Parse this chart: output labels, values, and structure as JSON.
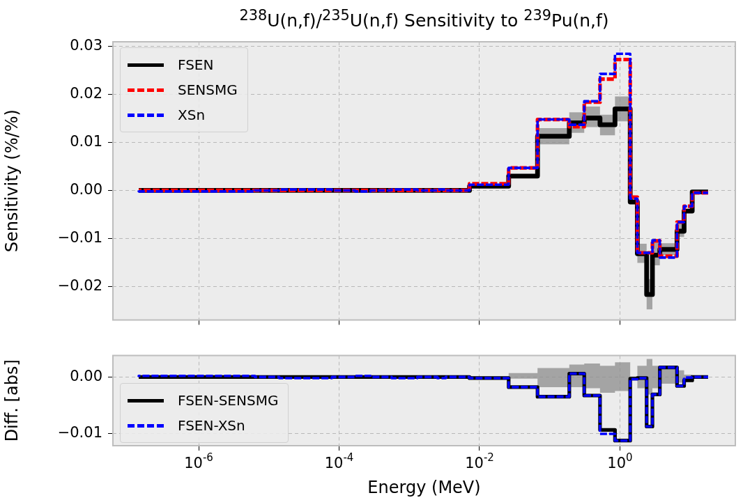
{
  "chart_data": [
    {
      "type": "step",
      "title": "$^{238}$U(n,f)/$^{235}$U(n,f) Sensitivity to $^{239}$Pu(n,f)",
      "ylabel": "Sensitivity (%/%)",
      "x": [
        1.4e-07,
        6.3e-06,
        1.4e-05,
        7.9e-05,
        0.00017,
        0.00028,
        0.00056,
        0.0013,
        0.0025,
        0.0033,
        0.0072,
        0.026,
        0.067,
        0.19,
        0.31,
        0.52,
        0.85,
        1.4,
        1.77,
        2.4,
        2.9,
        3.7,
        6.5,
        8.2,
        10.7,
        12.9,
        18
      ],
      "series": [
        {
          "name": "FSEN",
          "color": "#000000",
          "line_style": "solid",
          "values": [
            0,
            0,
            0,
            0,
            0,
            0,
            0,
            0,
            0,
            0,
            0,
            0.0009,
            0.003,
            0.0113,
            0.0141,
            0.0151,
            0.0137,
            0.017,
            -0.0024,
            -0.0132,
            -0.0217,
            -0.0135,
            -0.0123,
            -0.0085,
            -0.0043,
            -0.0003,
            -0.0003
          ],
          "lower": [
            0,
            0,
            0,
            0,
            0,
            0,
            0,
            0,
            0,
            0,
            0,
            0.0007,
            0.0028,
            0.0096,
            0.012,
            0.0132,
            0.0115,
            0.0144,
            -0.0027,
            -0.0151,
            -0.0248,
            -0.0156,
            -0.0135,
            -0.0097,
            -0.0046,
            -0.0004,
            -0.0004
          ],
          "upper": [
            0,
            0,
            0,
            0,
            0,
            0,
            0,
            0,
            0,
            0,
            0,
            0.0011,
            0.0032,
            0.013,
            0.0163,
            0.0175,
            0.0158,
            0.0196,
            -0.0021,
            -0.0111,
            -0.0185,
            -0.0104,
            -0.011,
            -0.0066,
            -0.004,
            -0.0002,
            -0.0002
          ]
        },
        {
          "name": "SENSMG",
          "color": "#ff0000",
          "line_style": "dashed",
          "values": [
            0,
            0,
            0,
            0,
            0,
            0,
            0,
            0,
            0,
            0,
            0,
            0.0014,
            0.0047,
            0.0148,
            0.0133,
            0.0184,
            0.0232,
            0.0273,
            -0.0014,
            -0.013,
            -0.013,
            -0.0105,
            -0.0137,
            -0.0066,
            -0.0033,
            -0.0005,
            -0.0005
          ]
        },
        {
          "name": "XSn",
          "color": "#0000ff",
          "line_style": "dashed",
          "values": [
            0,
            -0.0002,
            0,
            0.0002,
            0,
            -0.0002,
            0,
            0.0002,
            0,
            0.0002,
            0,
            0.0012,
            0.0047,
            0.0148,
            0.0137,
            0.0186,
            0.0243,
            0.0285,
            -0.0017,
            -0.013,
            -0.013,
            -0.0104,
            -0.014,
            -0.0066,
            -0.0033,
            -0.0005,
            -0.0005
          ]
        }
      ],
      "xlim": [
        6e-08,
        44
      ],
      "xticks": [
        {
          "value": 1e-06,
          "label": null
        },
        {
          "value": 0.0001,
          "label": null
        },
        {
          "value": 0.01,
          "label": null
        },
        {
          "value": 1,
          "label": null
        }
      ],
      "ylim": [
        -0.027,
        0.031
      ],
      "yticks": [
        {
          "value": -0.02,
          "label": "−0.02"
        },
        {
          "value": -0.01,
          "label": "−0.01"
        },
        {
          "value": 0,
          "label": "0.00"
        },
        {
          "value": 0.01,
          "label": "0.01"
        },
        {
          "value": 0.02,
          "label": "0.02"
        },
        {
          "value": 0.03,
          "label": "0.03"
        }
      ],
      "log": "x",
      "grid": true,
      "legend": "top left",
      "tick_labels": "y"
    },
    {
      "type": "step",
      "xlabel": "Energy (MeV)",
      "ylabel": "Diff. [abs]",
      "x": [
        1.4e-07,
        6.3e-06,
        1.4e-05,
        7.9e-05,
        0.00017,
        0.00028,
        0.00056,
        0.0013,
        0.0025,
        0.0033,
        0.0072,
        0.026,
        0.067,
        0.19,
        0.31,
        0.52,
        0.85,
        1.4,
        1.77,
        2.4,
        2.9,
        3.7,
        6.5,
        8.2,
        10.7,
        12.9,
        18
      ],
      "series": [
        {
          "name": "FSEN-SENSMG",
          "color": "#000000",
          "line_style": "solid",
          "values": [
            0,
            0,
            0,
            0,
            0,
            0,
            0,
            0,
            0,
            0,
            0,
            -0.0002,
            -0.0018,
            -0.0035,
            0.0006,
            -0.0033,
            -0.0094,
            -0.0113,
            -0.0003,
            -0.0002,
            -0.0088,
            -0.0031,
            0.0017,
            -0.0016,
            -0.0006,
            0,
            0
          ],
          "lower": [
            0,
            0,
            0,
            0,
            0,
            0,
            0,
            0,
            0,
            0,
            0,
            0,
            -0.0003,
            -0.0018,
            -0.0018,
            -0.002,
            -0.0028,
            -0.0025,
            -0.0001,
            -0.002,
            -0.0031,
            -0.002,
            -0.0012,
            -0.001,
            -0.0004,
            0,
            0
          ],
          "upper": [
            0,
            0,
            0,
            0,
            0,
            0,
            0,
            0,
            0,
            0,
            0,
            0,
            0.0007,
            0.0016,
            0.0022,
            0.0024,
            0.002,
            0.0026,
            0.0001,
            0.002,
            0.0032,
            0.002,
            0.0014,
            0.0012,
            0.0004,
            0,
            0
          ]
        },
        {
          "name": "FSEN-XSn",
          "color": "#0000ff",
          "line_style": "dashed",
          "values": [
            0,
            0.0002,
            0,
            -0.0002,
            0,
            0.0002,
            0,
            -0.0002,
            0,
            -0.0002,
            0,
            -0.0002,
            -0.0018,
            -0.0035,
            0.0006,
            -0.0033,
            -0.0101,
            -0.0113,
            -0.0004,
            -0.0002,
            -0.0088,
            -0.0031,
            0.0017,
            -0.0016,
            -0.0001,
            0,
            0
          ]
        }
      ],
      "xlim": [
        6e-08,
        44
      ],
      "xticks": [
        {
          "value": 1e-06,
          "label": "10$^{-6}$"
        },
        {
          "value": 0.0001,
          "label": "10$^{-4}$"
        },
        {
          "value": 0.01,
          "label": "10$^{-2}$"
        },
        {
          "value": 1,
          "label": "10$^{0}$"
        }
      ],
      "ylim": [
        -0.0122,
        0.0038
      ],
      "yticks": [
        {
          "value": -0.01,
          "label": "−0.01"
        },
        {
          "value": 0,
          "label": "0.00"
        }
      ],
      "log": "x",
      "grid": true,
      "legend": "bottom left"
    }
  ]
}
